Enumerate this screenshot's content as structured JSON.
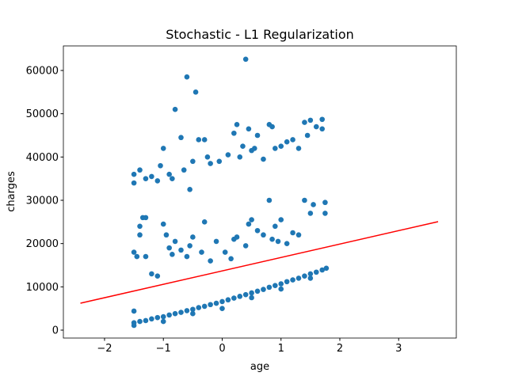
{
  "chart_data": {
    "type": "scatter",
    "title": "Stochastic - L1 Regularization",
    "x_label": "age",
    "y_label": "charges",
    "xlim": [
      -2.7,
      3.98
    ],
    "ylim": [
      -1830,
      65670
    ],
    "xticks": [
      {
        "value": -2,
        "label": "−2"
      },
      {
        "value": -1,
        "label": "−1"
      },
      0,
      1,
      2,
      3
    ],
    "yticks": [
      0,
      10000,
      20000,
      30000,
      40000,
      50000,
      60000
    ],
    "points": {
      "color": "#1f77b4",
      "x": [
        -1.5,
        -1.4,
        -1.3,
        -1.2,
        -1.1,
        -1.0,
        -0.9,
        -0.8,
        -0.7,
        -0.6,
        -0.5,
        -0.4,
        -0.3,
        -0.2,
        -0.1,
        0,
        0.1,
        0.2,
        0.3,
        0.4,
        0.5,
        0.6,
        0.7,
        0.8,
        0.9,
        1.0,
        1.1,
        1.2,
        1.3,
        1.4,
        1.5,
        1.6,
        1.7,
        1.77,
        -1.5,
        -1.0,
        -0.5,
        0,
        0.5,
        1.0,
        1.5,
        -1.5,
        -1.5,
        -1.45,
        -1.4,
        -1.35,
        -1.3,
        -1.4,
        -1.3,
        -1.2,
        -1.1,
        -1.0,
        -0.95,
        -0.9,
        -0.85,
        -0.8,
        -0.7,
        -0.6,
        -0.55,
        -0.5,
        -0.3,
        -0.35,
        -0.2,
        -0.1,
        0.05,
        0.15,
        0.2,
        0.25,
        0.4,
        0.45,
        0.5,
        0.6,
        0.7,
        0.8,
        0.9,
        1.0,
        1.1,
        1.2,
        1.3,
        1.4,
        1.5,
        1.55,
        1.75,
        1.75,
        0.95,
        0.85,
        -1.5,
        -1.5,
        -1.4,
        -1.3,
        -1.2,
        -1.1,
        -1.05,
        -1.0,
        -0.9,
        -0.8,
        -0.85,
        -0.7,
        -0.65,
        -0.6,
        -0.55,
        -0.5,
        -0.45,
        -0.4,
        -0.3,
        -0.25,
        -0.2,
        -0.05,
        0.1,
        0.2,
        0.25,
        0.3,
        0.35,
        0.4,
        0.45,
        0.5,
        0.55,
        0.6,
        0.7,
        0.8,
        0.85,
        0.9,
        1.0,
        1.1,
        1.2,
        1.4,
        1.45,
        1.5,
        1.6,
        1.7,
        1.7,
        1.3
      ],
      "y": [
        1700,
        2000,
        2200,
        2600,
        2900,
        3100,
        3500,
        3800,
        4100,
        4500,
        4800,
        5200,
        5500,
        5900,
        6200,
        6600,
        7000,
        7400,
        7800,
        8200,
        8600,
        9000,
        9400,
        9900,
        10300,
        10700,
        11200,
        11600,
        12000,
        12500,
        13000,
        13400,
        13900,
        14300,
        1100,
        2000,
        3800,
        5000,
        7500,
        9500,
        12000,
        4400,
        18000,
        17000,
        24000,
        26000,
        26000,
        22000,
        17000,
        13000,
        12500,
        24500,
        22000,
        19000,
        17500,
        20500,
        18500,
        17000,
        19500,
        21500,
        25000,
        18000,
        16000,
        20500,
        18000,
        16500,
        21000,
        21500,
        19500,
        24500,
        25500,
        23000,
        22000,
        30000,
        24000,
        25500,
        20000,
        22500,
        22000,
        30000,
        27000,
        29000,
        29500,
        27000,
        20500,
        21000,
        36000,
        34000,
        37000,
        35000,
        35500,
        34500,
        38000,
        42000,
        36000,
        51000,
        35000,
        44500,
        37000,
        58500,
        32500,
        39000,
        55000,
        44000,
        44000,
        40000,
        38500,
        39000,
        40500,
        45500,
        47500,
        40000,
        42500,
        62600,
        46500,
        41500,
        42000,
        45000,
        39500,
        47500,
        47000,
        42000,
        42500,
        43500,
        44000,
        48000,
        45000,
        48500,
        47000,
        48700,
        46500,
        42000
      ]
    },
    "fit_line": {
      "color": "#ff0000",
      "x": [
        -2.41,
        3.67
      ],
      "y": [
        6220,
        25060
      ]
    }
  }
}
